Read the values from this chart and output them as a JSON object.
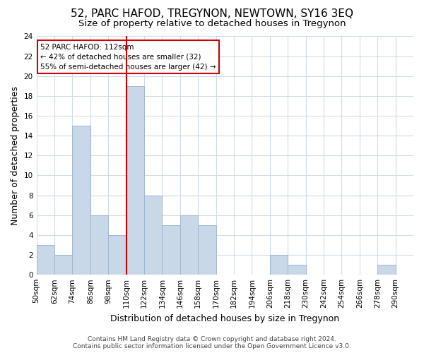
{
  "title": "52, PARC HAFOD, TREGYNON, NEWTOWN, SY16 3EQ",
  "subtitle": "Size of property relative to detached houses in Tregynon",
  "xlabel": "Distribution of detached houses by size in Tregynon",
  "ylabel": "Number of detached properties",
  "bin_labels": [
    "50sqm",
    "62sqm",
    "74sqm",
    "86sqm",
    "98sqm",
    "110sqm",
    "122sqm",
    "134sqm",
    "146sqm",
    "158sqm",
    "170sqm",
    "182sqm",
    "194sqm",
    "206sqm",
    "218sqm",
    "230sqm",
    "242sqm",
    "254sqm",
    "266sqm",
    "278sqm",
    "290sqm"
  ],
  "bar_heights": [
    3,
    2,
    15,
    6,
    4,
    19,
    8,
    5,
    6,
    5,
    0,
    0,
    0,
    2,
    1,
    0,
    0,
    0,
    0,
    1,
    0
  ],
  "bar_color": "#c8d8e8",
  "bar_edge_color": "#a0b8d0",
  "vline_color": "#cc0000",
  "ylim": [
    0,
    24
  ],
  "yticks": [
    0,
    2,
    4,
    6,
    8,
    10,
    12,
    14,
    16,
    18,
    20,
    22,
    24
  ],
  "annotation_title": "52 PARC HAFOD: 112sqm",
  "annotation_line1": "← 42% of detached houses are smaller (32)",
  "annotation_line2": "55% of semi-detached houses are larger (42) →",
  "annotation_box_color": "#ffffff",
  "annotation_box_edge": "#cc0000",
  "footer_line1": "Contains HM Land Registry data © Crown copyright and database right 2024.",
  "footer_line2": "Contains public sector information licensed under the Open Government Licence v3.0.",
  "background_color": "#ffffff",
  "grid_color": "#d0dce8",
  "title_fontsize": 11,
  "subtitle_fontsize": 9.5,
  "axis_label_fontsize": 9,
  "tick_fontsize": 7.5,
  "footer_fontsize": 6.5,
  "annotation_fontsize": 7.5
}
